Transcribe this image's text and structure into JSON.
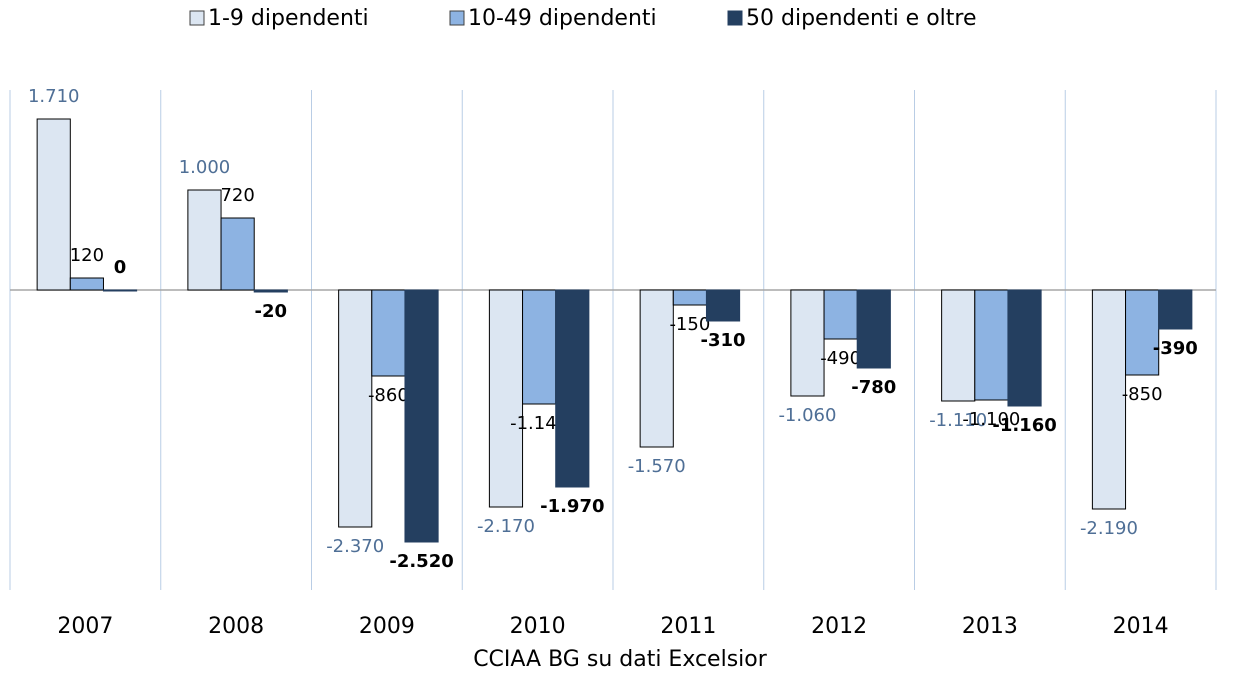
{
  "chart_data": {
    "type": "bar",
    "categories": [
      "2007",
      "2008",
      "2009",
      "2010",
      "2011",
      "2012",
      "2013",
      "2014"
    ],
    "series": [
      {
        "name": "1-9 dipendenti",
        "color": "#dce6f2",
        "values": [
          1710,
          1000,
          -2370,
          -2170,
          -1570,
          -1060,
          -1110,
          -2190
        ],
        "value_labels": [
          "1.710",
          "1.000",
          "-2.370",
          "-2.170",
          "-1.570",
          "-1.060",
          "-1.110",
          "-2.190"
        ]
      },
      {
        "name": "10-49 dipendenti",
        "color": "#8db3e2",
        "values": [
          120,
          720,
          -860,
          -1140,
          -150,
          -490,
          -1100,
          -850
        ],
        "value_labels": [
          "120",
          "720",
          "-860",
          "-1.140",
          "-150",
          "-490",
          "-1.100",
          "-850"
        ]
      },
      {
        "name": "50 dipendenti e oltre",
        "color": "#243f60",
        "values": [
          0,
          -20,
          -2520,
          -1970,
          -310,
          -780,
          -1160,
          -390
        ],
        "value_labels": [
          "0",
          "-20",
          "-2.520",
          "-1.970",
          "-310",
          "-780",
          "-1.160",
          "-390"
        ]
      }
    ],
    "ylim": [
      -3000,
      2000
    ],
    "grid": true,
    "legend": "top",
    "source": "CCIAA BG su dati Excelsior"
  }
}
